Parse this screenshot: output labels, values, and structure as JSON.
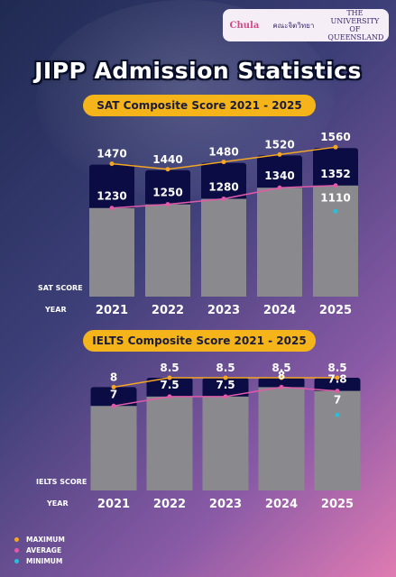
{
  "logos": {
    "chula": "Chula",
    "psych": "คณะจิตวิทยา",
    "uq": "THE UNIVERSITY OF QUEENSLAND"
  },
  "title": "JIPP Admission Statistics",
  "legend": {
    "items": [
      {
        "label": "MAXIMUM",
        "color": "#f5a623"
      },
      {
        "label": "AVERAGE",
        "color": "#e05aa8"
      },
      {
        "label": "MINIMUM",
        "color": "#27c0d6"
      }
    ]
  },
  "chart_data": [
    {
      "type": "bar",
      "title": "SAT Composite Score 2021 - 2025",
      "categories": [
        "2021",
        "2022",
        "2023",
        "2024",
        "2025"
      ],
      "score_label": "SAT SCORE",
      "year_label": "YEAR",
      "ylim": [
        750,
        1600
      ],
      "series": [
        {
          "name": "MAXIMUM",
          "values": [
            1470,
            1440,
            1480,
            1520,
            1560
          ],
          "color": "#f5a623"
        },
        {
          "name": "AVERAGE",
          "values": [
            1230,
            1250,
            1280,
            1340,
            1352
          ],
          "color": "#e05aa8"
        },
        {
          "name": "MINIMUM",
          "values": [
            null,
            null,
            null,
            null,
            1110
          ],
          "color": "#27c0d6"
        }
      ]
    },
    {
      "type": "bar",
      "title": "IELTS Composite Score 2021 - 2025",
      "categories": [
        "2021",
        "2022",
        "2023",
        "2024",
        "2025"
      ],
      "score_label": "IELTS SCORE",
      "year_label": "YEAR",
      "ylim": [
        2.5,
        8.5
      ],
      "series": [
        {
          "name": "MAXIMUM",
          "values": [
            8,
            8.5,
            8.5,
            8.5,
            8.5
          ],
          "labels": [
            "8",
            "8.5",
            "8.5",
            "8.5",
            "8.5"
          ],
          "color": "#f5a623"
        },
        {
          "name": "AVERAGE",
          "values": [
            7,
            7.5,
            7.5,
            8,
            7.8
          ],
          "labels": [
            "7",
            "7.5",
            "7.5",
            "8",
            "7.8"
          ],
          "color": "#e05aa8"
        },
        {
          "name": "MINIMUM",
          "values": [
            null,
            null,
            null,
            null,
            7
          ],
          "labels": [
            "",
            "",
            "",
            "",
            "7"
          ],
          "color": "#27c0d6"
        }
      ]
    }
  ]
}
